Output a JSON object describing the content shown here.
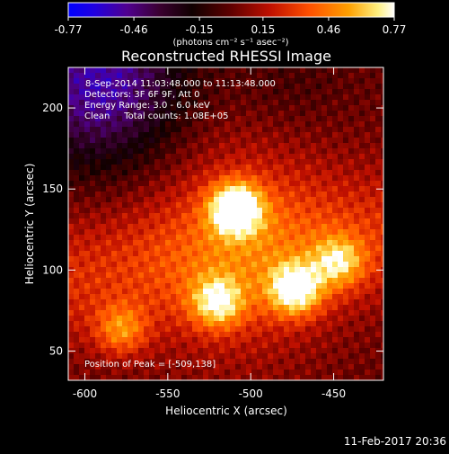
{
  "chart_data": {
    "type": "heatmap",
    "title": "Reconstructed RHESSI Image",
    "xlabel": "Heliocentric X (arcsec)",
    "ylabel": "Heliocentric Y (arcsec)",
    "xlim": [
      -610,
      -420
    ],
    "ylim": [
      32,
      225
    ],
    "x_ticks": [
      "-600",
      "-550",
      "-500",
      "-450"
    ],
    "x_tick_values": [
      -600,
      -550,
      -500,
      -450
    ],
    "y_ticks": [
      "50",
      "100",
      "150",
      "200"
    ],
    "y_tick_values": [
      50,
      100,
      150,
      200
    ],
    "colorbar": {
      "ticks": [
        "-0.77",
        "-0.46",
        "-0.15",
        "0.15",
        "0.46",
        "0.77"
      ],
      "tick_values": [
        -0.77,
        -0.46,
        -0.15,
        0.15,
        0.46,
        0.77
      ],
      "range": [
        -0.77,
        0.77
      ],
      "units_label": "(photons cm⁻² s⁻¹ asec⁻²)",
      "colormap": "red-temperature"
    },
    "annotations": {
      "line1": "8-Sep-2014 11:03:48.000 to 11:13:48.000",
      "line2": "Detectors: 3F 6F 9F, Att 0",
      "line3": "Energy Range: 3.0 - 6.0 keV",
      "line4": "Clean     Total counts: 1.08E+05",
      "peak": "Position of Peak = [-509,138]"
    },
    "sources": [
      {
        "x": -509,
        "y": 138,
        "peak": 0.77
      },
      {
        "x": -473,
        "y": 88,
        "peak": 0.66
      },
      {
        "x": -520,
        "y": 80,
        "peak": 0.52
      },
      {
        "x": -447,
        "y": 105,
        "peak": 0.45
      },
      {
        "x": -578,
        "y": 63,
        "peak": 0.38
      }
    ],
    "peak_position": [
      -509,
      138
    ]
  },
  "footer": {
    "timestamp": "11-Feb-2017 20:36"
  }
}
